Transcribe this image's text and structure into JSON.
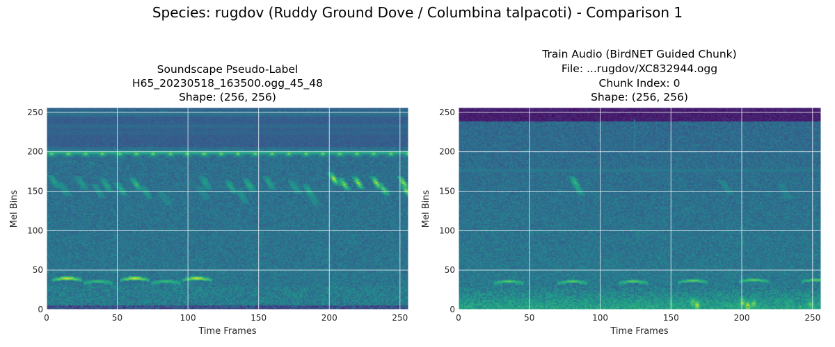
{
  "figure": {
    "suptitle": "Species: rugdov (Ruddy Ground Dove / Columbina talpacoti) - Comparison 1"
  },
  "chart_data": [
    {
      "type": "heatmap",
      "title_lines": [
        "Soundscape Pseudo-Label",
        "H65_20230518_163500.ogg_45_48",
        "Shape: (256, 256)"
      ],
      "xlabel": "Time Frames",
      "ylabel": "Mel Bins",
      "xlim": [
        0,
        256
      ],
      "ylim": [
        0,
        256
      ],
      "xticks": [
        0,
        50,
        100,
        150,
        200,
        250
      ],
      "yticks": [
        0,
        50,
        100,
        150,
        200,
        250
      ],
      "grid": true,
      "colormap": "viridis",
      "features": {
        "bands": [
          {
            "y": 198,
            "width": 4,
            "level": 0.62
          },
          {
            "y": 247,
            "width": 3,
            "level": 0.4
          },
          {
            "y": 232,
            "width": 3,
            "level": 0.36
          },
          {
            "y": 224,
            "width": 3,
            "level": 0.33
          }
        ],
        "top_band": {
          "from": 252,
          "to": 256,
          "level": 0.28
        },
        "pulses_200": {
          "start": 3,
          "step": 12,
          "y": 197,
          "level": 0.85
        },
        "calls": [
          {
            "x": 5,
            "y": 162,
            "level": 0.58
          },
          {
            "x": 12,
            "y": 152,
            "level": 0.5
          },
          {
            "x": 24,
            "y": 160,
            "level": 0.55
          },
          {
            "x": 36,
            "y": 150,
            "level": 0.52
          },
          {
            "x": 42,
            "y": 157,
            "level": 0.6
          },
          {
            "x": 52,
            "y": 152,
            "level": 0.62
          },
          {
            "x": 63,
            "y": 158,
            "level": 0.7
          },
          {
            "x": 70,
            "y": 148,
            "level": 0.55
          },
          {
            "x": 83,
            "y": 140,
            "level": 0.45
          },
          {
            "x": 110,
            "y": 148,
            "level": 0.45
          },
          {
            "x": 112,
            "y": 160,
            "level": 0.55
          },
          {
            "x": 130,
            "y": 155,
            "level": 0.6
          },
          {
            "x": 138,
            "y": 143,
            "level": 0.5
          },
          {
            "x": 143,
            "y": 157,
            "level": 0.62
          },
          {
            "x": 157,
            "y": 160,
            "level": 0.58
          },
          {
            "x": 175,
            "y": 155,
            "level": 0.55
          },
          {
            "x": 185,
            "y": 150,
            "level": 0.62
          },
          {
            "x": 188,
            "y": 140,
            "level": 0.5
          },
          {
            "x": 203,
            "y": 165,
            "level": 0.95
          },
          {
            "x": 210,
            "y": 158,
            "level": 0.85
          },
          {
            "x": 220,
            "y": 160,
            "level": 0.9
          },
          {
            "x": 233,
            "y": 160,
            "level": 0.92
          },
          {
            "x": 238,
            "y": 152,
            "level": 0.8
          },
          {
            "x": 252,
            "y": 160,
            "level": 0.92
          },
          {
            "x": 254,
            "y": 150,
            "level": 0.85
          }
        ],
        "low_calls": [
          {
            "x": 14,
            "y": 37,
            "level": 0.97
          },
          {
            "x": 62,
            "y": 37,
            "level": 0.97
          },
          {
            "x": 106,
            "y": 37,
            "level": 0.97
          },
          {
            "x": 36,
            "y": 33,
            "level": 0.7
          },
          {
            "x": 84,
            "y": 33,
            "level": 0.7
          }
        ],
        "dark_floor": {
          "from": 0,
          "to": 5,
          "level": 0.12
        },
        "low_noise": {
          "level": 0.42
        }
      }
    },
    {
      "type": "heatmap",
      "title_lines": [
        "Train Audio (BirdNET Guided Chunk)",
        "File: ...rugdov/XC832944.ogg",
        "Chunk Index: 0",
        "Shape: (256, 256)"
      ],
      "xlabel": "Time Frames",
      "ylabel": "Mel Bins",
      "xlim": [
        0,
        256
      ],
      "ylim": [
        0,
        256
      ],
      "xticks": [
        0,
        50,
        100,
        150,
        200,
        250
      ],
      "yticks": [
        0,
        50,
        100,
        150,
        200,
        250
      ],
      "grid": true,
      "colormap": "viridis",
      "features": {
        "bands": [
          {
            "y": 176,
            "width": 3,
            "level": 0.42
          }
        ],
        "top_band": {
          "from": 238,
          "to": 256,
          "level": 0.04
        },
        "calls": [
          {
            "x": 82,
            "y": 160,
            "level": 0.7
          },
          {
            "x": 84,
            "y": 152,
            "level": 0.6
          },
          {
            "x": 188,
            "y": 155,
            "level": 0.45
          },
          {
            "x": 230,
            "y": 150,
            "level": 0.42
          }
        ],
        "low_calls": [
          {
            "x": 35,
            "y": 33,
            "level": 0.78
          },
          {
            "x": 80,
            "y": 33,
            "level": 0.78
          },
          {
            "x": 123,
            "y": 33,
            "level": 0.78
          },
          {
            "x": 165,
            "y": 34,
            "level": 0.8
          },
          {
            "x": 208,
            "y": 35,
            "level": 0.8
          },
          {
            "x": 252,
            "y": 35,
            "level": 0.8
          }
        ],
        "bursts": [
          {
            "x": 150,
            "y": 6,
            "level": 0.7
          },
          {
            "x": 165,
            "y": 8,
            "level": 0.85
          },
          {
            "x": 168,
            "y": 5,
            "level": 0.95
          },
          {
            "x": 200,
            "y": 8,
            "level": 0.9
          },
          {
            "x": 204,
            "y": 4,
            "level": 1.0
          },
          {
            "x": 208,
            "y": 6,
            "level": 0.9
          },
          {
            "x": 232,
            "y": 5,
            "level": 0.65
          },
          {
            "x": 248,
            "y": 6,
            "level": 0.8
          }
        ],
        "vertical_streak": {
          "x": 124,
          "from": 200,
          "to": 240,
          "level": 0.4
        },
        "low_noise": {
          "level": 0.58
        }
      }
    }
  ]
}
